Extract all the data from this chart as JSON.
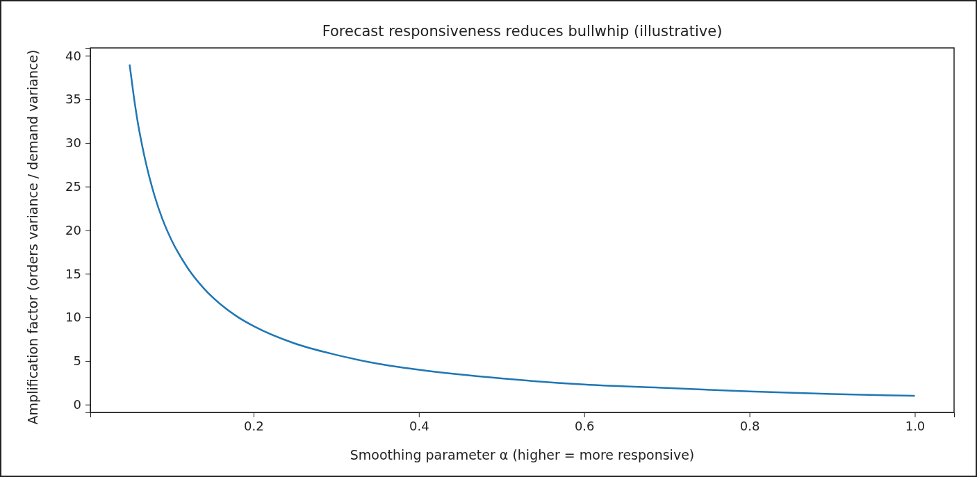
{
  "chart_data": {
    "type": "line",
    "title": "Forecast responsiveness reduces bullwhip (illustrative)",
    "xlabel": "Smoothing parameter α (higher = more responsive)",
    "ylabel": "Amplification factor (orders variance / demand variance)",
    "x": [
      0.05,
      0.055,
      0.06,
      0.065,
      0.07,
      0.075,
      0.08,
      0.09,
      0.1,
      0.12,
      0.14,
      0.16,
      0.18,
      0.2,
      0.25,
      0.3,
      0.35,
      0.4,
      0.5,
      0.6,
      0.7,
      0.8,
      0.9,
      1.0
    ],
    "series": [
      {
        "color": "#1f77b4",
        "values": [
          39,
          35.4,
          32.3,
          29.8,
          27.6,
          25.7,
          24,
          21.2,
          19,
          15.7,
          13.3,
          11.5,
          10.1,
          9,
          7,
          5.7,
          4.7,
          4,
          3,
          2.3,
          1.9,
          1.5,
          1.2,
          1
        ]
      }
    ],
    "xlim": [
      0.0025,
      1.0475
    ],
    "ylim": [
      -0.9,
      40.9
    ],
    "xticks": [
      {
        "value": 0.2,
        "label": "0.2"
      },
      {
        "value": 0.4,
        "label": "0.4"
      },
      {
        "value": 0.6,
        "label": "0.6"
      },
      {
        "value": 0.8,
        "label": "0.8"
      },
      {
        "value": 1.0,
        "label": "1.0"
      }
    ],
    "yticks": [
      0,
      5,
      10,
      15,
      20,
      25,
      30,
      35,
      40
    ],
    "grid": false,
    "marker": "none",
    "line_style": "solid"
  }
}
